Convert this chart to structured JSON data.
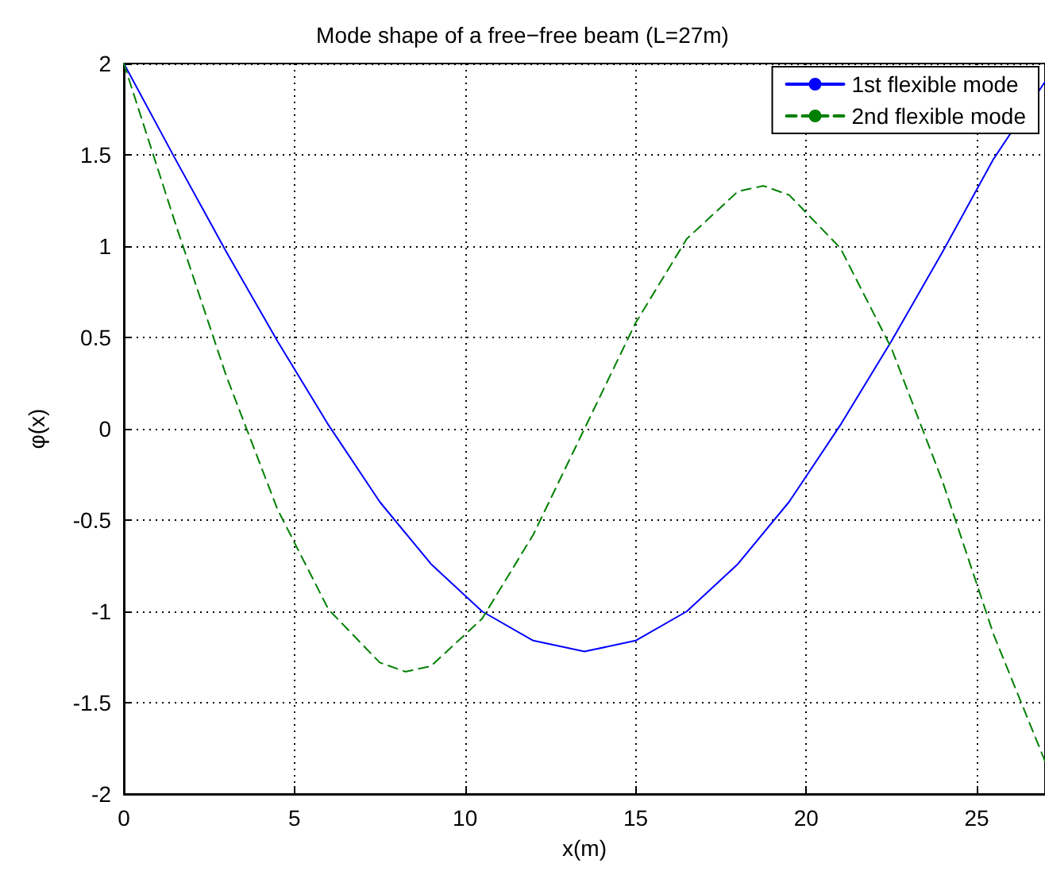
{
  "chart_data": {
    "type": "line",
    "title": "Mode shape of a free−free beam (L=27m)",
    "xlabel": "x(m)",
    "ylabel": "φ(x)",
    "series": [
      {
        "name": "1st flexible mode",
        "color": "#0000ff",
        "line_style": "solid",
        "x": [
          0,
          1.5,
          3,
          4.5,
          6,
          7.5,
          9,
          10.5,
          12,
          13.5,
          15,
          16.5,
          18,
          19.5,
          21,
          22.5,
          24,
          25.5,
          27
        ],
        "values": [
          2,
          1.48,
          0.97,
          0.48,
          0.02,
          -0.4,
          -0.74,
          -1.0,
          -1.16,
          -1.22,
          -1.16,
          -1.0,
          -0.74,
          -0.4,
          0.02,
          0.48,
          0.97,
          1.48,
          1.9
        ]
      },
      {
        "name": "2nd flexible mode",
        "color": "#008000",
        "line_style": "dashed",
        "x": [
          0,
          1.5,
          3,
          4.5,
          6,
          7.5,
          8.25,
          9,
          10.5,
          12,
          13.5,
          15,
          16.5,
          18,
          18.75,
          19.5,
          21,
          22.5,
          24,
          25.5,
          27
        ],
        "values": [
          2,
          1.13,
          0.29,
          -0.44,
          -0.99,
          -1.28,
          -1.33,
          -1.3,
          -1.04,
          -0.58,
          0,
          0.58,
          1.04,
          1.3,
          1.33,
          1.28,
          0.99,
          0.44,
          -0.29,
          -1.13,
          -1.82
        ]
      }
    ],
    "xlim": [
      0,
      27
    ],
    "xticks": [
      0,
      5,
      10,
      15,
      20,
      25
    ],
    "ylim": [
      -2,
      2
    ],
    "yticks": [
      -2,
      -1.5,
      -1,
      -0.5,
      0,
      0.5,
      1,
      1.5,
      2
    ],
    "grid": true,
    "legend": "top right",
    "marker": "none"
  }
}
